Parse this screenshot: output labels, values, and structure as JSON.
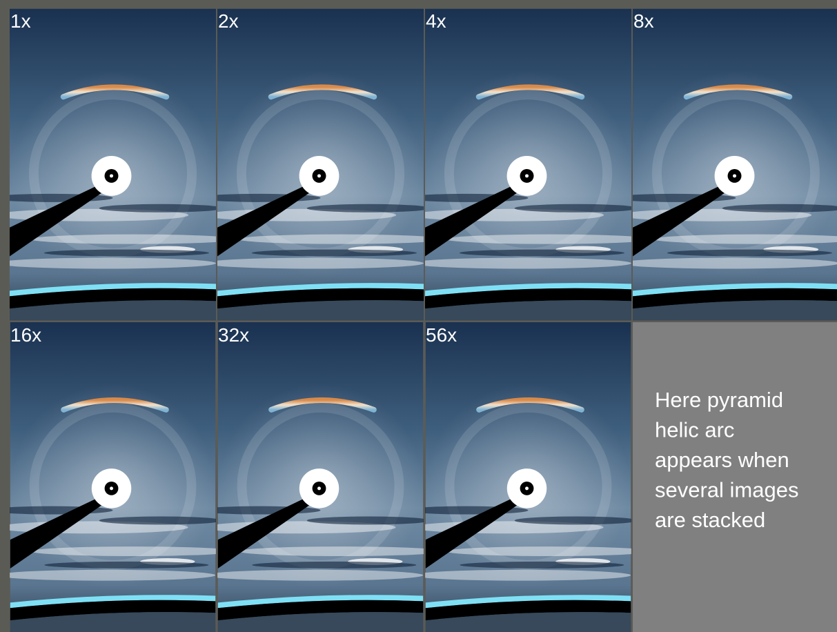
{
  "panels": [
    {
      "label": "1x"
    },
    {
      "label": "2x"
    },
    {
      "label": "4x"
    },
    {
      "label": "8x"
    },
    {
      "label": "16x"
    },
    {
      "label": "32x"
    },
    {
      "label": "56x"
    }
  ],
  "caption": [
    "Here pyramid",
    "helic arc",
    "appears when",
    "several images",
    "are stacked"
  ]
}
